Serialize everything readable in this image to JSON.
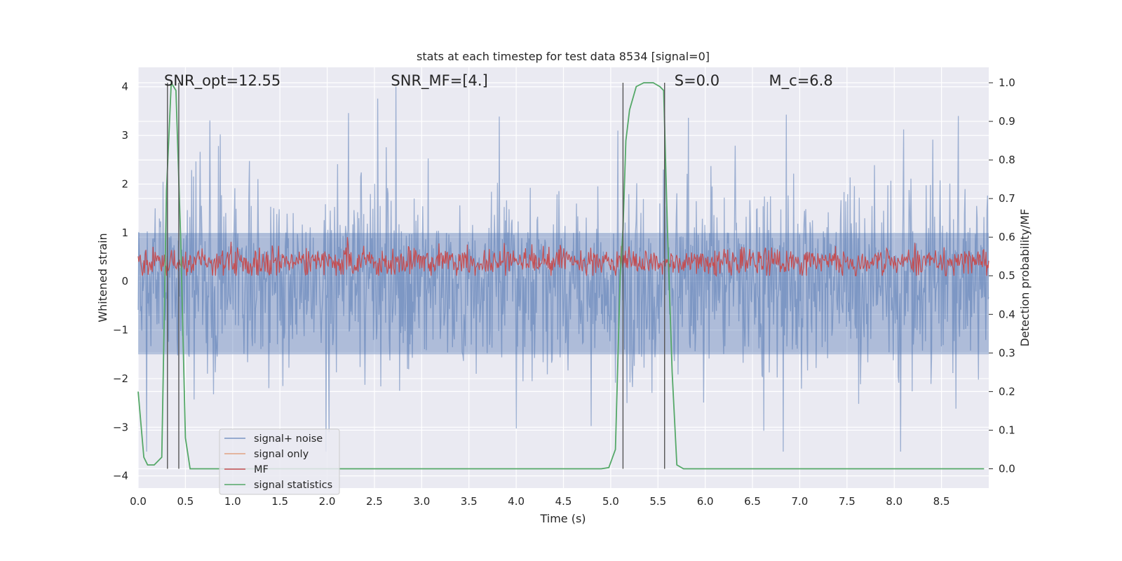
{
  "chart_data": {
    "type": "line",
    "title": "stats at each timestep for test data 8534 [signal=0]",
    "xlabel": "Time (s)",
    "ylabel_left": "Whitened strain",
    "ylabel_right": "Detection probability/MF",
    "xlim": [
      0.0,
      9.0
    ],
    "ylim_left": [
      -4.25,
      4.4
    ],
    "ylim_right": [
      -0.05,
      1.04
    ],
    "x_ticks": [
      "0.0",
      "0.5",
      "1.0",
      "1.5",
      "2.0",
      "2.5",
      "3.0",
      "3.5",
      "4.0",
      "4.5",
      "5.0",
      "5.5",
      "6.0",
      "6.5",
      "7.0",
      "7.5",
      "8.0",
      "8.5"
    ],
    "x_tick_values": [
      0.0,
      0.5,
      1.0,
      1.5,
      2.0,
      2.5,
      3.0,
      3.5,
      4.0,
      4.5,
      5.0,
      5.5,
      6.0,
      6.5,
      7.0,
      7.5,
      8.0,
      8.5
    ],
    "y_ticks_left": [
      "4",
      "3",
      "2",
      "1",
      "0",
      "−1",
      "−2",
      "−3",
      "−4"
    ],
    "y_tick_values_left": [
      4,
      3,
      2,
      1,
      0,
      -1,
      -2,
      -3,
      -4
    ],
    "y_ticks_right": [
      "1.0",
      "0.9",
      "0.8",
      "0.7",
      "0.6",
      "0.5",
      "0.4",
      "0.3",
      "0.2",
      "0.1",
      "0.0"
    ],
    "y_tick_values_right": [
      1.0,
      0.9,
      0.8,
      0.7,
      0.6,
      0.5,
      0.4,
      0.3,
      0.2,
      0.1,
      0.0
    ],
    "annotations": [
      {
        "text": "SNR_opt=12.55",
        "x": 0.2
      },
      {
        "text": "SNR_MF=[4.]",
        "x": 2.6
      },
      {
        "text": "S=0.0",
        "x": 5.6
      },
      {
        "text": "M_c=6.8",
        "x": 6.6
      }
    ],
    "vertical_lines": [
      0.31,
      0.43,
      5.13,
      5.57
    ],
    "vline_range": [
      0.0,
      1.0
    ],
    "series": [
      {
        "name": "signal+ noise",
        "color": "#4c72b0",
        "axis": "left",
        "description": "whitened strain noise, approx. range -3.5 to 4.0"
      },
      {
        "name": "signal only",
        "color": "#dd8452",
        "axis": "left",
        "values": []
      },
      {
        "name": "MF",
        "color": "#c44e52",
        "axis": "right",
        "description": "matched filter output, approx. range 0.5 to 0.6"
      },
      {
        "name": "signal statistics",
        "color": "#55a868",
        "axis": "right",
        "x": [
          0.0,
          0.06,
          0.1,
          0.17,
          0.25,
          0.3,
          0.35,
          0.4,
          0.45,
          0.5,
          0.55,
          0.6,
          0.7,
          0.8,
          1.0,
          2.0,
          3.0,
          4.0,
          4.5,
          4.9,
          4.98,
          5.05,
          5.1,
          5.13,
          5.16,
          5.2,
          5.27,
          5.35,
          5.45,
          5.52,
          5.56,
          5.6,
          5.65,
          5.7,
          5.77,
          5.85,
          6.0,
          7.0,
          8.0,
          8.95
        ],
        "y": [
          0.2,
          0.03,
          0.01,
          0.01,
          0.03,
          0.72,
          1.0,
          0.98,
          0.6,
          0.08,
          0.0,
          0.0,
          0.0,
          0.0,
          0.0,
          0.0,
          0.0,
          0.0,
          0.0,
          0.0,
          0.003,
          0.05,
          0.5,
          0.62,
          0.85,
          0.93,
          0.99,
          1.0,
          1.0,
          0.99,
          0.98,
          0.62,
          0.25,
          0.01,
          0.0,
          0.0,
          0.0,
          0.0,
          0.0,
          0.0
        ]
      }
    ],
    "legend_position": "lower-left"
  }
}
